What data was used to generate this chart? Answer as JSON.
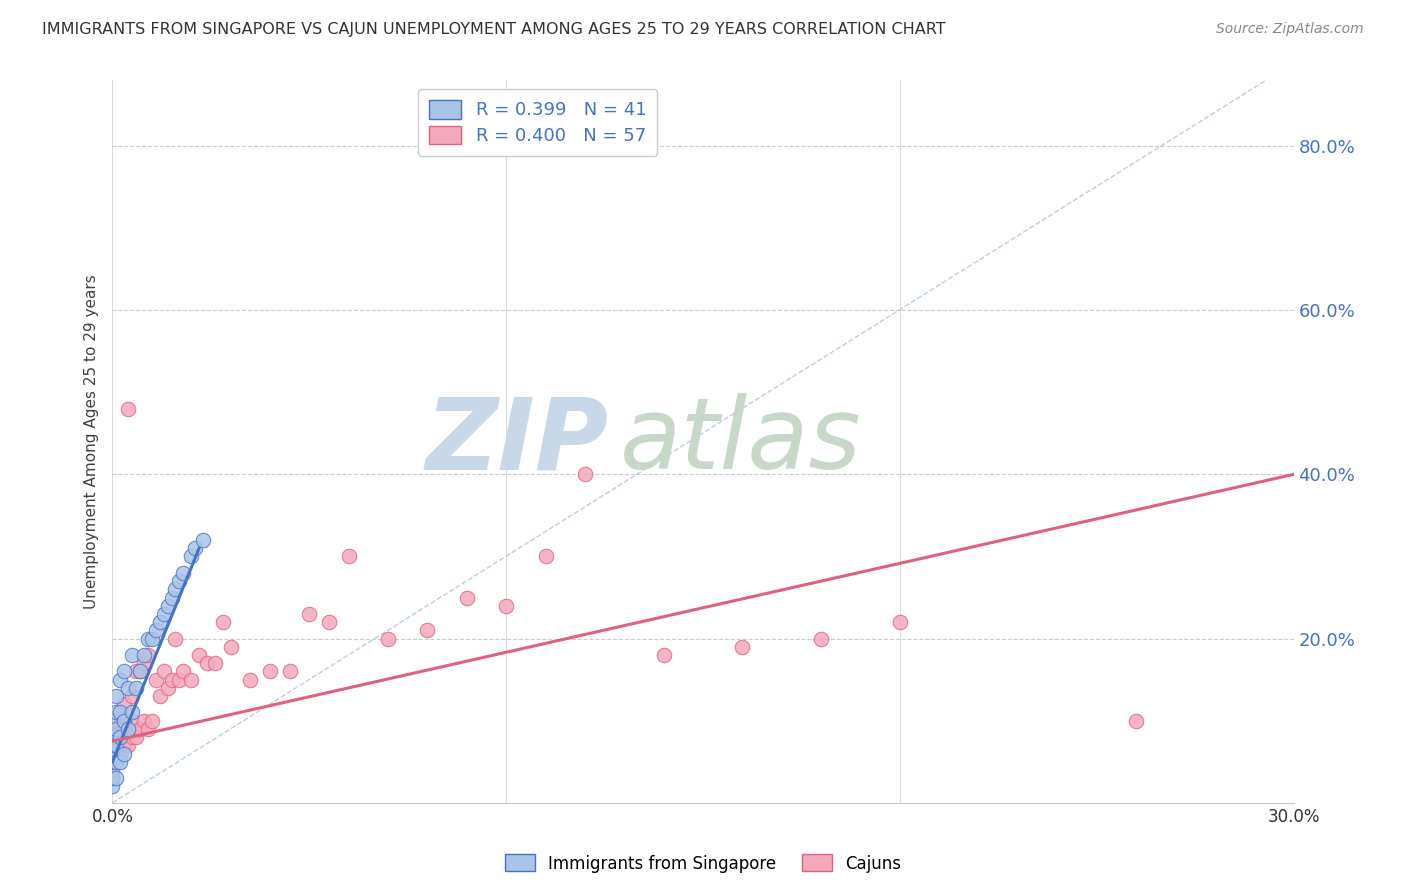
{
  "title": "IMMIGRANTS FROM SINGAPORE VS CAJUN UNEMPLOYMENT AMONG AGES 25 TO 29 YEARS CORRELATION CHART",
  "source": "Source: ZipAtlas.com",
  "ylabel": "Unemployment Among Ages 25 to 29 years",
  "xlim": [
    0.0,
    0.3
  ],
  "ylim": [
    0.0,
    0.88
  ],
  "yticks": [
    0.2,
    0.4,
    0.6,
    0.8
  ],
  "ytick_labels": [
    "20.0%",
    "40.0%",
    "60.0%",
    "80.0%"
  ],
  "xticks": [
    0.0,
    0.1,
    0.2,
    0.3
  ],
  "xtick_labels": [
    "0.0%",
    "",
    "",
    "30.0%"
  ],
  "r_singapore": 0.399,
  "n_singapore": 41,
  "r_cajun": 0.4,
  "n_cajun": 57,
  "color_singapore": "#aac4e8",
  "color_cajun": "#f4a8bc",
  "line_color_singapore": "#4472c4",
  "line_color_cajun": "#e06080",
  "line_color_diagonal": "#a8c4e0",
  "watermark_zip": "ZIP",
  "watermark_atlas": "atlas",
  "watermark_color_zip": "#c8d8e8",
  "watermark_color_atlas": "#c8d8c8",
  "legend_label_singapore": "Immigrants from Singapore",
  "legend_label_cajun": "Cajuns",
  "title_color": "#333333",
  "source_color": "#888888",
  "tick_color_y_right": "#4472c4",
  "tick_color_x": "#333333",
  "singapore_x": [
    0.0,
    0.0,
    0.0,
    0.0,
    0.0,
    0.0,
    0.0,
    0.0,
    0.001,
    0.001,
    0.001,
    0.001,
    0.001,
    0.001,
    0.002,
    0.002,
    0.002,
    0.002,
    0.003,
    0.003,
    0.003,
    0.004,
    0.004,
    0.005,
    0.005,
    0.006,
    0.007,
    0.008,
    0.009,
    0.01,
    0.011,
    0.012,
    0.013,
    0.014,
    0.015,
    0.016,
    0.017,
    0.018,
    0.02,
    0.021,
    0.023
  ],
  "singapore_y": [
    0.02,
    0.03,
    0.04,
    0.05,
    0.06,
    0.07,
    0.08,
    0.1,
    0.03,
    0.05,
    0.07,
    0.09,
    0.11,
    0.13,
    0.05,
    0.08,
    0.11,
    0.15,
    0.06,
    0.1,
    0.16,
    0.09,
    0.14,
    0.11,
    0.18,
    0.14,
    0.16,
    0.18,
    0.2,
    0.2,
    0.21,
    0.22,
    0.23,
    0.24,
    0.25,
    0.26,
    0.27,
    0.28,
    0.3,
    0.31,
    0.32
  ],
  "cajun_x": [
    0.0,
    0.0,
    0.0,
    0.0,
    0.001,
    0.001,
    0.001,
    0.002,
    0.002,
    0.003,
    0.003,
    0.003,
    0.004,
    0.004,
    0.005,
    0.005,
    0.005,
    0.006,
    0.006,
    0.007,
    0.007,
    0.008,
    0.008,
    0.009,
    0.009,
    0.01,
    0.011,
    0.012,
    0.013,
    0.014,
    0.015,
    0.016,
    0.017,
    0.018,
    0.02,
    0.022,
    0.024,
    0.026,
    0.028,
    0.03,
    0.035,
    0.04,
    0.045,
    0.05,
    0.055,
    0.06,
    0.07,
    0.08,
    0.09,
    0.1,
    0.11,
    0.12,
    0.14,
    0.16,
    0.18,
    0.2,
    0.26
  ],
  "cajun_y": [
    0.05,
    0.06,
    0.08,
    0.1,
    0.06,
    0.08,
    0.1,
    0.06,
    0.09,
    0.07,
    0.09,
    0.12,
    0.07,
    0.48,
    0.08,
    0.1,
    0.13,
    0.08,
    0.16,
    0.09,
    0.16,
    0.1,
    0.17,
    0.09,
    0.18,
    0.1,
    0.15,
    0.13,
    0.16,
    0.14,
    0.15,
    0.2,
    0.15,
    0.16,
    0.15,
    0.18,
    0.17,
    0.17,
    0.22,
    0.19,
    0.15,
    0.16,
    0.16,
    0.23,
    0.22,
    0.3,
    0.2,
    0.21,
    0.25,
    0.24,
    0.3,
    0.4,
    0.18,
    0.19,
    0.2,
    0.22,
    0.1
  ],
  "singapore_line_x": [
    0.0,
    0.022
  ],
  "singapore_line_y": [
    0.05,
    0.31
  ],
  "cajun_line_x": [
    0.0,
    0.3
  ],
  "cajun_line_y": [
    0.075,
    0.4
  ],
  "diag_line_x": [
    0.0,
    0.293
  ],
  "diag_line_y": [
    0.0,
    0.88
  ]
}
